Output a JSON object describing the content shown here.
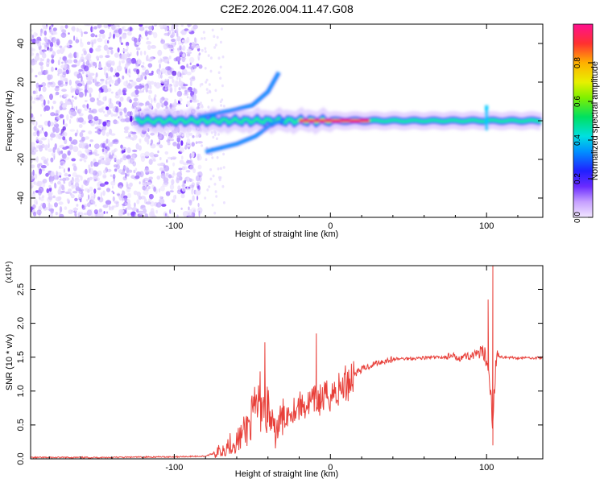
{
  "figure_title": "C2E2.2026.004.11.47.G08",
  "chart_data": [
    {
      "type": "heatmap",
      "title": "C2E2.2026.004.11.47.G08",
      "xlabel": "Height of straight line (km)",
      "ylabel": "Frequency (Hz)",
      "xlim": [
        -192,
        136
      ],
      "ylim": [
        -50,
        50
      ],
      "x_ticks": [
        -100,
        0,
        100
      ],
      "y_ticks": [
        -40,
        -20,
        0,
        20,
        40
      ],
      "colorbar": {
        "label": "Normalized spectral amplitude",
        "range": [
          0,
          1
        ],
        "ticks": [
          0.0,
          0.2,
          0.4,
          0.6,
          0.8
        ]
      },
      "features": [
        {
          "name": "noise-region",
          "x_range": [
            -192,
            -83
          ],
          "freq_range": [
            -50,
            50
          ],
          "amplitude": 0.15
        },
        {
          "name": "main-carrier",
          "x_range": [
            -125,
            136
          ],
          "freq": 0,
          "amplitude": 0.5
        },
        {
          "name": "upper-branch",
          "points": [
            [
              -85,
              2
            ],
            [
              -65,
              5
            ],
            [
              -50,
              8
            ],
            [
              -40,
              15
            ],
            [
              -33,
              25
            ]
          ],
          "amplitude": 0.3
        },
        {
          "name": "lower-branch",
          "points": [
            [
              -80,
              -16
            ],
            [
              -60,
              -12
            ],
            [
              -48,
              -8
            ],
            [
              -38,
              -2
            ],
            [
              -30,
              0
            ]
          ],
          "amplitude": 0.3
        },
        {
          "name": "strong-core",
          "x_range": [
            -20,
            25
          ],
          "freq": 0,
          "amplitude": 0.95
        },
        {
          "name": "spike-100km",
          "x": 100,
          "freq_range": [
            -5,
            8
          ],
          "amplitude": 0.6
        }
      ]
    },
    {
      "type": "line",
      "xlabel": "Height of straight line (km)",
      "ylabel": "SNR (10 * v/v)",
      "y_multiplier": "(x10⁴)",
      "xlim": [
        -192,
        136
      ],
      "ylim": [
        0,
        2.85
      ],
      "x_ticks": [
        -100,
        0,
        100
      ],
      "y_ticks": [
        0.0,
        0.5,
        1.0,
        1.5,
        2.0,
        2.5
      ],
      "series": [
        {
          "name": "SNR",
          "color": "#e8403a",
          "x": [
            -192,
            -150,
            -100,
            -80,
            -70,
            -65,
            -60,
            -55,
            -50,
            -45,
            -42,
            -40,
            -38,
            -36,
            -33,
            -30,
            -25,
            -20,
            -15,
            -10,
            -5,
            0,
            5,
            10,
            15,
            20,
            30,
            40,
            50,
            60,
            70,
            80,
            90,
            95,
            100,
            102,
            104,
            106,
            110,
            120,
            136
          ],
          "y": [
            0.02,
            0.02,
            0.03,
            0.04,
            0.12,
            0.22,
            0.25,
            0.4,
            0.6,
            0.85,
            0.9,
            0.7,
            0.55,
            0.35,
            0.5,
            0.6,
            0.72,
            0.78,
            0.8,
            0.85,
            0.88,
            0.95,
            1.0,
            1.12,
            1.25,
            1.32,
            1.42,
            1.47,
            1.48,
            1.49,
            1.5,
            1.5,
            1.52,
            1.55,
            1.5,
            1.2,
            0.5,
            1.5,
            1.5,
            1.49,
            1.49
          ]
        }
      ],
      "annotations": [
        {
          "x": -42,
          "y": 1.72
        },
        {
          "x": -9,
          "y": 1.85
        },
        {
          "x": 101,
          "y": 2.35
        },
        {
          "x": 104,
          "y": 2.85
        },
        {
          "x": 104,
          "y": 0.2
        }
      ]
    }
  ]
}
